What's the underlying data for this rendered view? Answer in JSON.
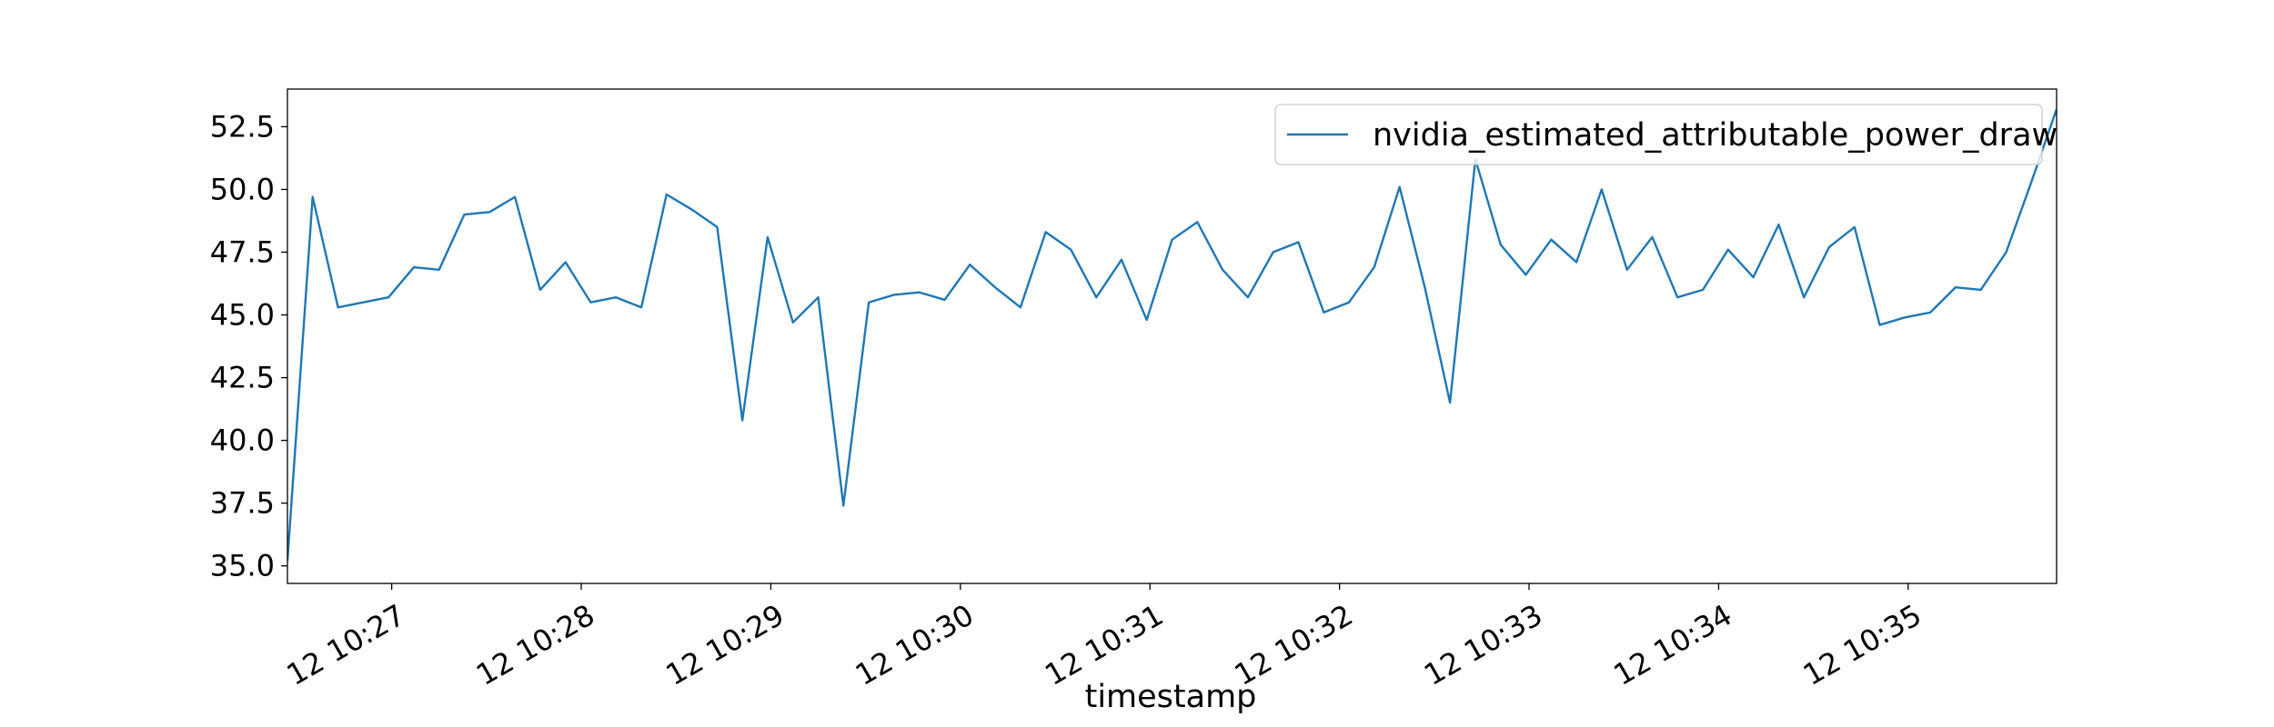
{
  "chart_data": {
    "type": "line",
    "x_label": "timestamp",
    "x": [
      26.45,
      26.583,
      26.717,
      26.85,
      26.983,
      27.117,
      27.25,
      27.383,
      27.517,
      27.65,
      27.783,
      27.917,
      28.05,
      28.183,
      28.317,
      28.45,
      28.583,
      28.717,
      28.85,
      28.983,
      29.117,
      29.25,
      29.383,
      29.517,
      29.65,
      29.783,
      29.917,
      30.05,
      30.183,
      30.317,
      30.45,
      30.583,
      30.717,
      30.85,
      30.983,
      31.117,
      31.25,
      31.383,
      31.517,
      31.65,
      31.783,
      31.917,
      32.05,
      32.183,
      32.317,
      32.45,
      32.583,
      32.717,
      32.85,
      32.983,
      33.117,
      33.25,
      33.383,
      33.517,
      33.65,
      33.783,
      33.917,
      34.05,
      34.183,
      34.317,
      34.45,
      34.583,
      34.717,
      34.85,
      34.983,
      35.117,
      35.25,
      35.383,
      35.517,
      35.65,
      35.783
    ],
    "series": [
      {
        "name": "nvidia_estimated_attributable_power_draw",
        "color": "#1f77b4",
        "values": [
          35.2,
          49.7,
          45.3,
          45.5,
          45.7,
          46.9,
          46.8,
          49.0,
          49.1,
          49.7,
          46.0,
          47.1,
          45.5,
          45.7,
          45.3,
          49.8,
          49.2,
          48.5,
          40.8,
          48.1,
          44.7,
          45.7,
          37.4,
          45.5,
          45.8,
          45.9,
          45.6,
          47.0,
          46.1,
          45.3,
          48.3,
          47.6,
          45.7,
          47.2,
          44.8,
          48.0,
          48.7,
          46.8,
          45.7,
          47.5,
          47.9,
          45.1,
          45.5,
          46.9,
          50.1,
          46.1,
          41.5,
          51.2,
          47.8,
          46.6,
          48.0,
          47.1,
          50.0,
          46.8,
          48.1,
          45.7,
          46.0,
          47.6,
          46.5,
          48.6,
          45.7,
          47.7,
          48.5,
          44.6,
          44.9,
          45.1,
          46.1,
          46.0,
          47.5,
          50.3,
          53.2
        ]
      }
    ],
    "xlim": [
      26.45,
      35.783
    ],
    "xticks": [
      {
        "value": 27,
        "label": "12 10:27"
      },
      {
        "value": 28,
        "label": "12 10:28"
      },
      {
        "value": 29,
        "label": "12 10:29"
      },
      {
        "value": 30,
        "label": "12 10:30"
      },
      {
        "value": 31,
        "label": "12 10:31"
      },
      {
        "value": 32,
        "label": "12 10:32"
      },
      {
        "value": 33,
        "label": "12 10:33"
      },
      {
        "value": 34,
        "label": "12 10:34"
      },
      {
        "value": 35,
        "label": "12 10:35"
      }
    ],
    "ylim": [
      34.3,
      54.0
    ],
    "yticks": [
      {
        "value": 35,
        "label": "35.0"
      },
      37.5,
      {
        "value": 40,
        "label": "40.0"
      },
      42.5,
      {
        "value": 45,
        "label": "45.0"
      },
      47.5,
      {
        "value": 50,
        "label": "50.0"
      },
      52.5
    ],
    "grid": false,
    "legend": "upper right"
  }
}
